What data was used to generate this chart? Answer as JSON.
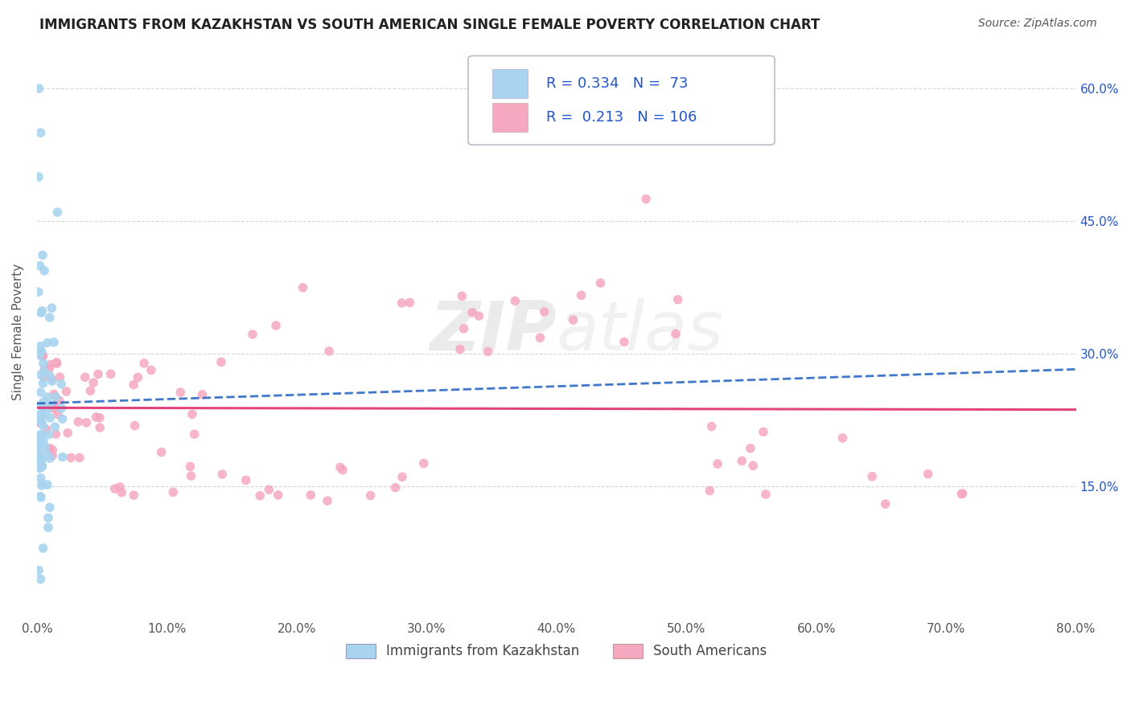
{
  "title": "IMMIGRANTS FROM KAZAKHSTAN VS SOUTH AMERICAN SINGLE FEMALE POVERTY CORRELATION CHART",
  "source": "Source: ZipAtlas.com",
  "ylabel": "Single Female Poverty",
  "series1_label": "Immigrants from Kazakhstan",
  "series2_label": "South Americans",
  "R1": 0.334,
  "N1": 73,
  "R2": 0.213,
  "N2": 106,
  "xlim": [
    0.0,
    0.8
  ],
  "ylim": [
    0.0,
    0.65
  ],
  "yticks_right": [
    0.15,
    0.3,
    0.45,
    0.6
  ],
  "color1": "#a8d4f0",
  "color2": "#f5a8c0",
  "trendline1_color": "#2060c0",
  "trendline2_color": "#e03070",
  "background_color": "#ffffff",
  "grid_color": "#cccccc",
  "title_color": "#222222",
  "source_color": "#555555",
  "legend_R_color": "#2255cc",
  "legend_box_color": "#e8e8f0",
  "watermark_color": "#d8d8d8"
}
